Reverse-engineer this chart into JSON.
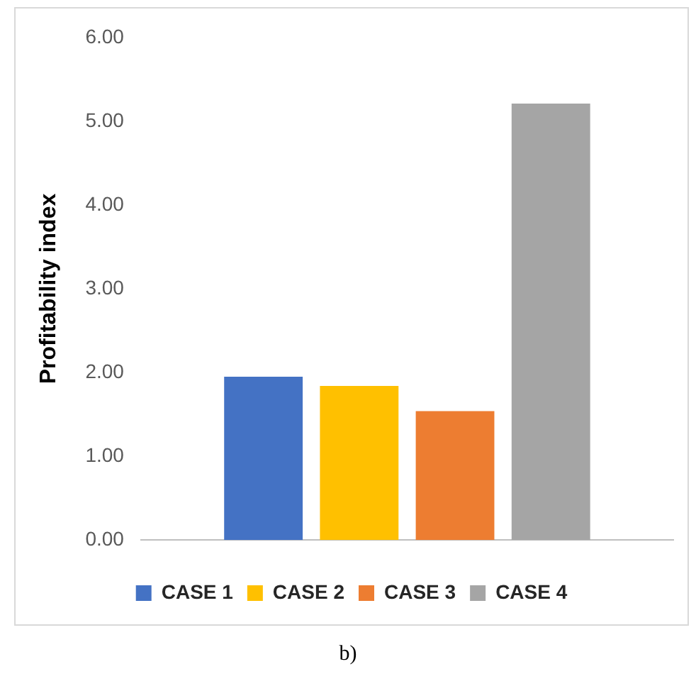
{
  "chart_data": {
    "type": "bar",
    "ylabel": "Profitability index",
    "categories": [
      null
    ],
    "series": [
      {
        "name": "CASE 1",
        "color": "#4472c4",
        "values": [
          1.95
        ]
      },
      {
        "name": "CASE 2",
        "color": "#ffc000",
        "values": [
          1.84
        ]
      },
      {
        "name": "CASE 3",
        "color": "#ed7d31",
        "values": [
          1.54
        ]
      },
      {
        "name": "CASE 4",
        "color": "#a5a5a5",
        "values": [
          5.21
        ]
      }
    ],
    "ylim": [
      0,
      6
    ],
    "yticks": [
      {
        "value": 0,
        "label": "0.00"
      },
      {
        "value": 1,
        "label": "1.00"
      },
      {
        "value": 2,
        "label": "2.00"
      },
      {
        "value": 3,
        "label": "3.00"
      },
      {
        "value": 4,
        "label": "4.00"
      },
      {
        "value": 5,
        "label": "5.00"
      },
      {
        "value": 6,
        "label": "6.00"
      }
    ],
    "grid": false,
    "legend": "bottom",
    "annotations": [
      "b)"
    ]
  }
}
